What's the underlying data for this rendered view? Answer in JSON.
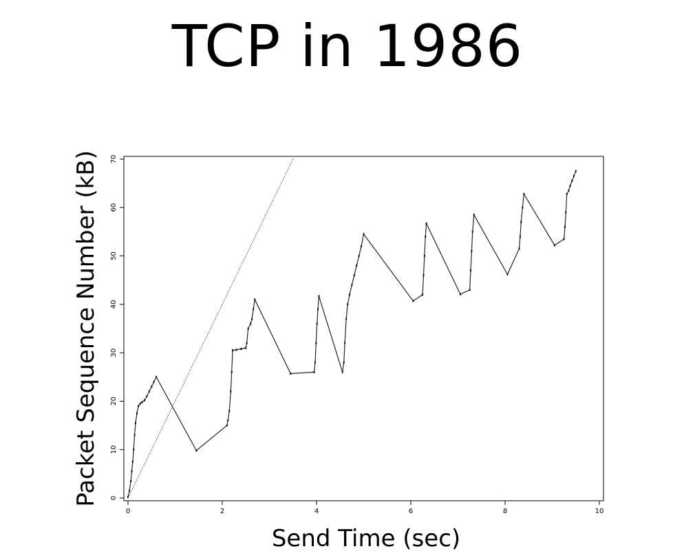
{
  "slide": {
    "title": "TCP in 1986"
  },
  "chart_data": {
    "type": "line",
    "title": "",
    "xlabel": "Send Time (sec)",
    "ylabel": "Packet Sequence Number (kB)",
    "xlim": [
      0,
      10
    ],
    "ylim": [
      0,
      70
    ],
    "xticks": [
      "0",
      "2",
      "4",
      "6",
      "8",
      "10"
    ],
    "yticks": [
      "0",
      "10",
      "20",
      "30",
      "40",
      "50",
      "60",
      "70"
    ],
    "grid": false,
    "legend": "none",
    "series": [
      {
        "style": "dashed-dots",
        "points": [
          [
            0.0,
            0.2
          ],
          [
            0.03,
            1.5
          ],
          [
            0.06,
            3.5
          ],
          [
            0.08,
            5.5
          ],
          [
            0.1,
            7.5
          ],
          [
            0.12,
            10.0
          ],
          [
            0.14,
            13.0
          ],
          [
            0.16,
            15.5
          ],
          [
            0.19,
            17.5
          ],
          [
            0.22,
            19.0
          ],
          [
            0.26,
            19.5
          ],
          [
            0.3,
            19.8
          ],
          [
            0.35,
            20.2
          ],
          [
            0.4,
            21.0
          ],
          [
            0.45,
            22.0
          ],
          [
            0.5,
            23.0
          ],
          [
            0.55,
            24.0
          ],
          [
            0.6,
            25.0
          ],
          [
            1.45,
            9.8
          ],
          [
            2.1,
            15.0
          ],
          [
            2.12,
            16.0
          ],
          [
            2.15,
            18.0
          ],
          [
            2.18,
            22.0
          ],
          [
            2.2,
            26.0
          ],
          [
            2.22,
            30.5
          ],
          [
            2.3,
            30.6
          ],
          [
            2.4,
            30.8
          ],
          [
            2.5,
            31.0
          ],
          [
            2.52,
            32.0
          ],
          [
            2.55,
            35.0
          ],
          [
            2.6,
            36.0
          ],
          [
            2.63,
            37.0
          ],
          [
            2.66,
            39.0
          ],
          [
            2.69,
            41.0
          ],
          [
            3.45,
            25.7
          ],
          [
            3.95,
            26.0
          ],
          [
            3.97,
            28.0
          ],
          [
            3.99,
            32.0
          ],
          [
            4.01,
            36.0
          ],
          [
            4.03,
            39.0
          ],
          [
            4.05,
            41.7
          ],
          [
            4.55,
            26.0
          ],
          [
            4.58,
            28.0
          ],
          [
            4.6,
            32.0
          ],
          [
            4.63,
            37.0
          ],
          [
            4.66,
            40.0
          ],
          [
            4.7,
            42.0
          ],
          [
            4.75,
            44.0
          ],
          [
            4.8,
            46.0
          ],
          [
            4.85,
            48.0
          ],
          [
            4.9,
            50.0
          ],
          [
            4.95,
            52.0
          ],
          [
            5.0,
            54.5
          ],
          [
            6.05,
            40.7
          ],
          [
            6.25,
            42.0
          ],
          [
            6.27,
            46.0
          ],
          [
            6.29,
            50.0
          ],
          [
            6.31,
            54.0
          ],
          [
            6.33,
            56.7
          ],
          [
            7.05,
            42.1
          ],
          [
            7.25,
            43.0
          ],
          [
            7.27,
            47.0
          ],
          [
            7.29,
            51.0
          ],
          [
            7.31,
            55.0
          ],
          [
            7.34,
            58.5
          ],
          [
            8.05,
            46.2
          ],
          [
            8.3,
            51.5
          ],
          [
            8.32,
            54.0
          ],
          [
            8.34,
            57.0
          ],
          [
            8.37,
            60.0
          ],
          [
            8.4,
            62.8
          ],
          [
            9.05,
            52.2
          ],
          [
            9.25,
            53.5
          ],
          [
            9.27,
            56.0
          ],
          [
            9.29,
            59.0
          ],
          [
            9.31,
            62.8
          ],
          [
            9.35,
            63.5
          ],
          [
            9.38,
            64.5
          ],
          [
            9.42,
            65.5
          ],
          [
            9.46,
            66.5
          ],
          [
            9.5,
            67.5
          ]
        ]
      },
      {
        "style": "dotted",
        "points": [
          [
            0.0,
            0.0
          ],
          [
            3.5,
            70.0
          ]
        ]
      }
    ]
  }
}
